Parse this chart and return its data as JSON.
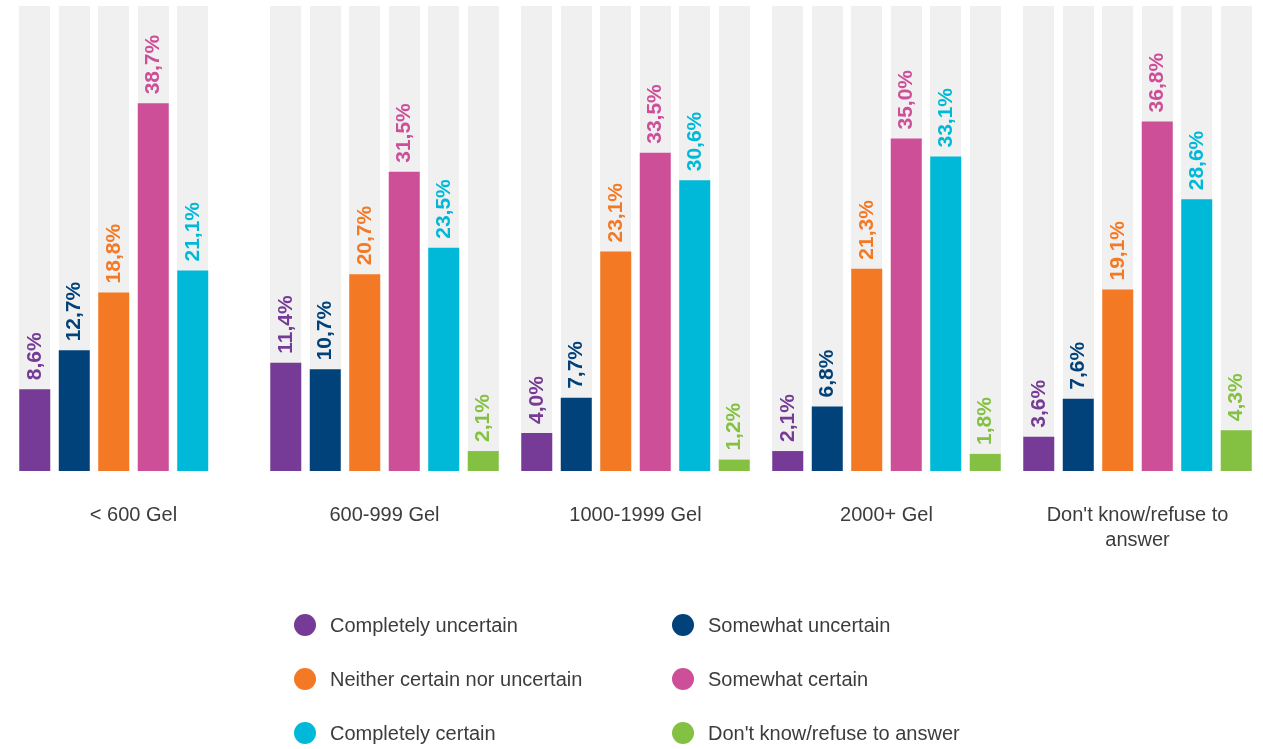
{
  "chart_data": {
    "type": "bar",
    "categories": [
      "< 600 Gel",
      "600-999 Gel",
      "1000-1999 Gel",
      "2000+ Gel",
      "Don't know/refuse to answer"
    ],
    "series": [
      {
        "name": "Completely uncertain",
        "color": "#763b96",
        "values": [
          8.6,
          11.4,
          4.0,
          2.1,
          3.6
        ],
        "value_labels": [
          "8,6%",
          "11,4%",
          "4,0%",
          "2,1%",
          "3,6%"
        ]
      },
      {
        "name": "Somewhat uncertain",
        "color": "#004279",
        "values": [
          12.7,
          10.7,
          7.7,
          6.8,
          7.6
        ],
        "value_labels": [
          "12,7%",
          "10,7%",
          "7,7%",
          "6,8%",
          "7,6%"
        ]
      },
      {
        "name": "Neither certain nor uncertain",
        "color": "#f47924",
        "values": [
          18.8,
          20.7,
          23.1,
          21.3,
          19.1
        ],
        "value_labels": [
          "18,8%",
          "20,7%",
          "23,1%",
          "21,3%",
          "19,1%"
        ]
      },
      {
        "name": "Somewhat certain",
        "color": "#cd4f98",
        "values": [
          38.7,
          31.5,
          33.5,
          35.0,
          36.8
        ],
        "value_labels": [
          "38,7%",
          "31,5%",
          "33,5%",
          "35,0%",
          "36,8%"
        ]
      },
      {
        "name": "Completely certain",
        "color": "#00b9d9",
        "values": [
          21.1,
          23.5,
          30.6,
          33.1,
          28.6
        ],
        "value_labels": [
          "21,1%",
          "23,5%",
          "30,6%",
          "33,1%",
          "28,6%"
        ]
      },
      {
        "name": "Don't know/refuse to answer",
        "color": "#84c142",
        "values": [
          null,
          2.1,
          1.2,
          1.8,
          4.3
        ],
        "value_labels": [
          null,
          "2,1%",
          "1,2%",
          "1,8%",
          "4,3%"
        ]
      }
    ],
    "legend": "bottom",
    "tick_labels": "x"
  }
}
